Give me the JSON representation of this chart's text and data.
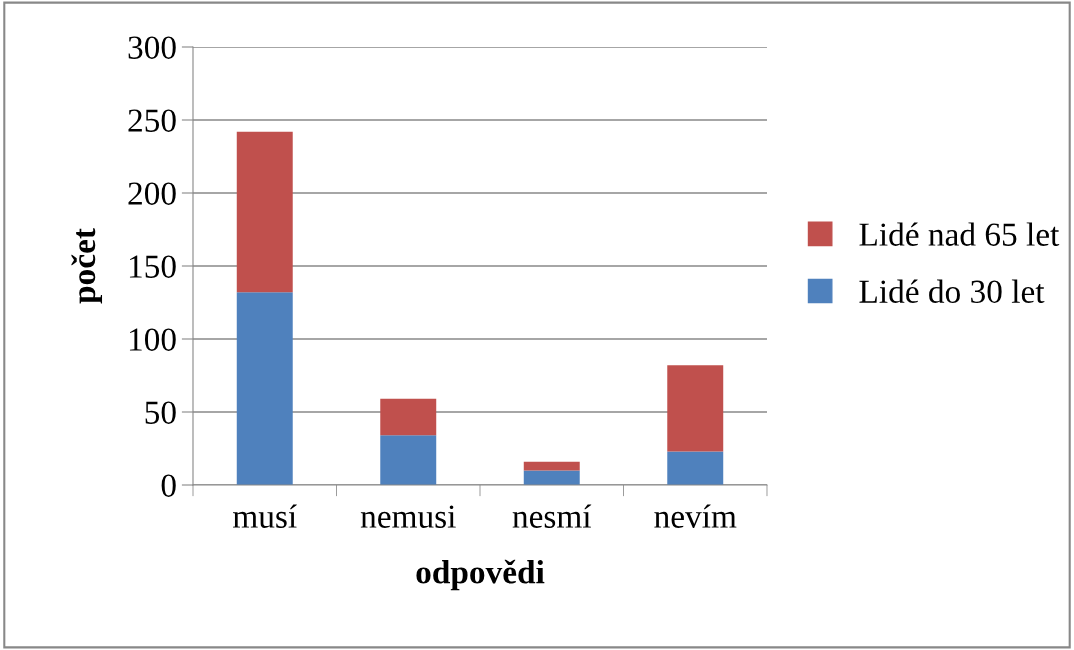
{
  "chart_data": {
    "type": "bar",
    "stacked": true,
    "xlabel": "odpovědi",
    "ylabel": "počet",
    "categories": [
      "musí",
      "nemusi",
      "nesmí",
      "nevím"
    ],
    "series": [
      {
        "name": "Lidé do 30 let",
        "color": "#4f81bd",
        "values": [
          132,
          34,
          10,
          23
        ]
      },
      {
        "name": "Lidé nad 65 let",
        "color": "#c0504d",
        "values": [
          110,
          25,
          6,
          59
        ]
      }
    ],
    "ylim": [
      0,
      300
    ],
    "yticks": [
      0,
      50,
      100,
      150,
      200,
      250,
      300
    ],
    "grid": "y",
    "legend": "right"
  }
}
